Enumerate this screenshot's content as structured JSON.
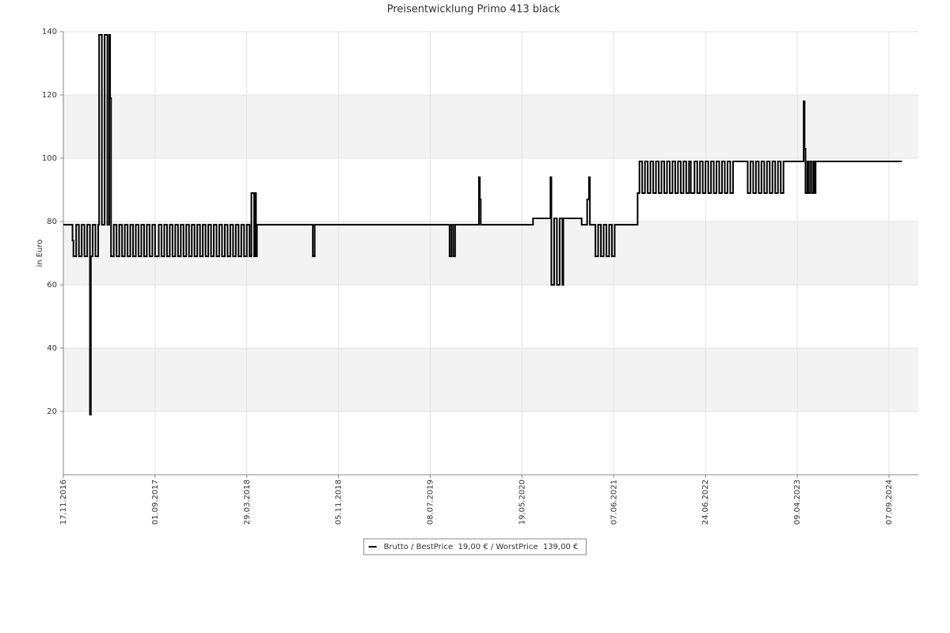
{
  "chart_data": {
    "type": "line",
    "step": true,
    "title": "Preisentwicklung Primo 413 black",
    "y_label": "in Euro",
    "x": [
      0,
      10,
      11,
      14,
      17,
      20,
      23,
      26,
      29,
      30,
      32,
      35,
      38,
      39,
      42,
      45,
      48,
      50,
      51,
      52,
      55,
      58,
      61,
      64,
      67,
      70,
      73,
      76,
      79,
      82,
      85,
      88,
      91,
      94,
      97,
      100,
      104,
      107,
      110,
      113,
      116,
      119,
      122,
      125,
      128,
      131,
      134,
      137,
      140,
      143,
      146,
      149,
      152,
      155,
      158,
      161,
      164,
      167,
      170,
      173,
      176,
      179,
      182,
      185,
      188,
      191,
      194,
      197,
      200,
      203,
      205,
      208,
      209,
      210,
      211,
      272,
      274,
      421,
      423,
      425,
      427,
      453,
      454,
      455,
      512,
      531,
      532,
      535,
      538,
      541,
      544,
      545,
      565,
      571,
      573,
      574,
      580,
      583,
      586,
      589,
      592,
      595,
      598,
      601,
      626,
      628,
      631,
      634,
      637,
      640,
      643,
      646,
      649,
      652,
      655,
      658,
      661,
      664,
      667,
      670,
      673,
      676,
      679,
      682,
      684,
      688,
      691,
      694,
      697,
      700,
      703,
      706,
      709,
      712,
      715,
      718,
      721,
      724,
      727,
      730,
      746,
      749,
      752,
      755,
      758,
      761,
      764,
      767,
      770,
      773,
      776,
      779,
      782,
      785,
      807,
      808,
      809,
      811,
      812,
      814,
      816,
      818,
      819,
      820,
      914
    ],
    "series": [
      {
        "name": "Brutto / BestPrice  19,00 € / WorstPrice  139,00 €",
        "color": "#000000",
        "values": [
          79,
          74,
          69,
          79,
          69,
          79,
          69,
          79,
          19,
          69,
          79,
          69,
          79,
          139,
          79,
          139,
          79,
          139,
          119,
          69,
          79,
          69,
          79,
          69,
          79,
          69,
          79,
          69,
          79,
          69,
          79,
          69,
          79,
          69,
          79,
          69,
          79,
          69,
          79,
          69,
          79,
          69,
          79,
          69,
          79,
          69,
          79,
          69,
          79,
          69,
          79,
          69,
          79,
          69,
          79,
          69,
          79,
          69,
          79,
          69,
          79,
          69,
          79,
          69,
          79,
          69,
          79,
          69,
          79,
          69,
          89,
          69,
          89,
          69,
          79,
          69,
          79,
          69,
          79,
          69,
          79,
          94,
          87,
          79,
          81,
          94,
          60,
          81,
          60,
          81,
          60,
          81,
          79,
          87,
          94,
          79,
          69,
          79,
          69,
          79,
          69,
          79,
          69,
          79,
          89,
          99,
          89,
          99,
          89,
          99,
          89,
          99,
          89,
          99,
          89,
          99,
          89,
          99,
          89,
          99,
          89,
          99,
          89,
          99,
          89,
          99,
          89,
          99,
          89,
          99,
          89,
          99,
          89,
          99,
          89,
          99,
          89,
          99,
          89,
          99,
          89,
          99,
          89,
          99,
          89,
          99,
          89,
          99,
          89,
          99,
          89,
          99,
          89,
          99,
          118,
          103,
          89,
          99,
          89,
          99,
          89,
          99,
          89,
          99,
          99
        ]
      }
    ],
    "xlim": [
      0,
      932
    ],
    "xticks": [
      {
        "value": 0,
        "label": "17.11.2016"
      },
      {
        "value": 100,
        "label": "01.09.2017"
      },
      {
        "value": 200,
        "label": "29.03.2018"
      },
      {
        "value": 300,
        "label": "05.11.2018"
      },
      {
        "value": 400,
        "label": "08.07.2019"
      },
      {
        "value": 500,
        "label": "19.05.2020"
      },
      {
        "value": 600,
        "label": "07.06.2021"
      },
      {
        "value": 700,
        "label": "24.06.2022"
      },
      {
        "value": 800,
        "label": "09.04.2023"
      },
      {
        "value": 900,
        "label": "07.09.2024"
      }
    ],
    "ylim": [
      0,
      140
    ],
    "yticks": [
      20,
      40,
      60,
      80,
      100,
      120,
      140
    ],
    "grid": true
  }
}
